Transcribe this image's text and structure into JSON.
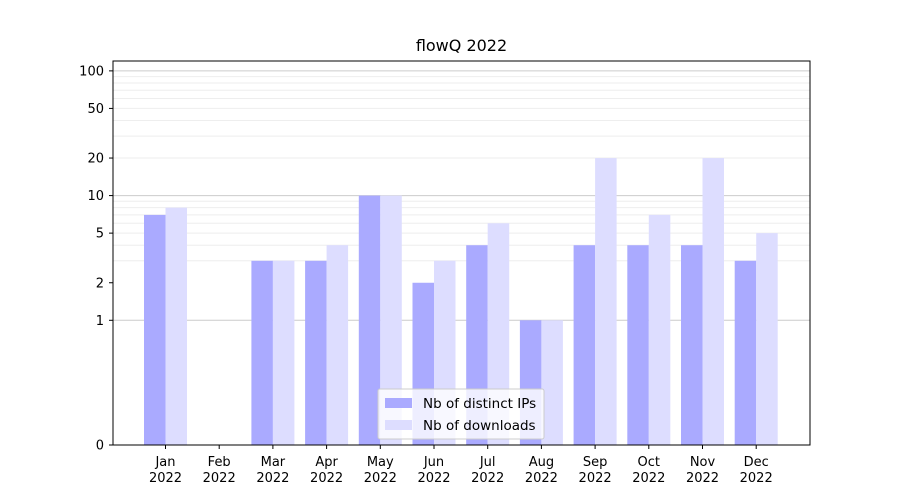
{
  "chart_data": {
    "type": "bar",
    "title": "flowQ 2022",
    "xlabel": "",
    "ylabel": "",
    "y_scale": "symlog",
    "ylim": [
      0,
      120
    ],
    "yticks": [
      0,
      1,
      2,
      5,
      10,
      20,
      50,
      100
    ],
    "grid": "horizontal",
    "legend_position": "bottom-center",
    "categories": [
      [
        "Jan",
        "2022"
      ],
      [
        "Feb",
        "2022"
      ],
      [
        "Mar",
        "2022"
      ],
      [
        "Apr",
        "2022"
      ],
      [
        "May",
        "2022"
      ],
      [
        "Jun",
        "2022"
      ],
      [
        "Jul",
        "2022"
      ],
      [
        "Aug",
        "2022"
      ],
      [
        "Sep",
        "2022"
      ],
      [
        "Oct",
        "2022"
      ],
      [
        "Nov",
        "2022"
      ],
      [
        "Dec",
        "2022"
      ]
    ],
    "series": [
      {
        "name": "Nb of distinct IPs",
        "color": "#aaaaff",
        "values": [
          7,
          0,
          3,
          3,
          10,
          2,
          4,
          1,
          4,
          4,
          4,
          3
        ]
      },
      {
        "name": "Nb of downloads",
        "color": "#ddddff",
        "values": [
          8,
          0,
          3,
          4,
          10,
          3,
          6,
          1,
          20,
          7,
          20,
          5
        ]
      }
    ]
  }
}
